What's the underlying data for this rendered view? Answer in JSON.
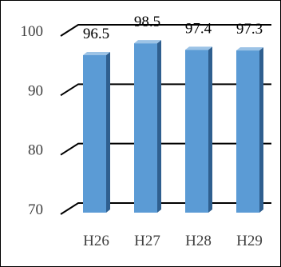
{
  "chart_data": {
    "type": "bar",
    "categories": [
      "H26",
      "H27",
      "H28",
      "H29"
    ],
    "values": [
      96.5,
      98.5,
      97.4,
      97.3
    ],
    "data_labels": [
      "96.5",
      "98.5",
      "97.4",
      "97.3"
    ],
    "title": "",
    "xlabel": "",
    "ylabel": "",
    "ylim": [
      70,
      100
    ],
    "yticks": [
      "70",
      "80",
      "90",
      "100"
    ],
    "grid": true,
    "style": "3d-column",
    "colors": {
      "bar_front": "#5b9bd5",
      "bar_side": "#2f5f8f",
      "bar_top": "#9cc3e6",
      "gridline": "#000000",
      "tick_text": "#404040"
    }
  }
}
